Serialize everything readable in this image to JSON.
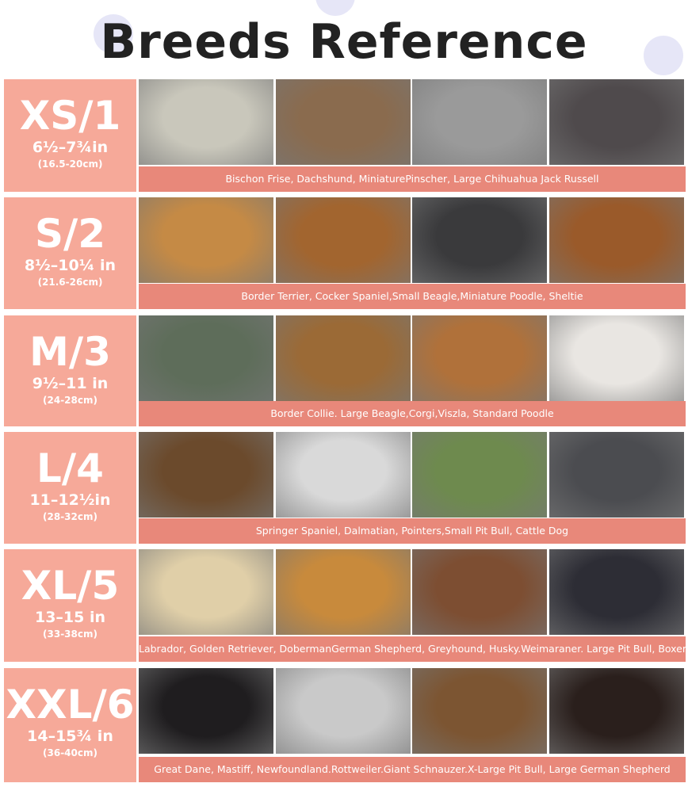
{
  "title": "Breeds Reference",
  "rows": [
    {
      "size": "XS/1",
      "range": "6½–7¾in",
      "cm": "(16.5-20cm)",
      "breeds": "Bischon Frise, Dachshund, MiniaturePinscher, Large Chihuahua Jack Russell"
    },
    {
      "size": "S/2",
      "range": "8½–10¼ in",
      "cm": "(21.6-26cm)",
      "breeds": "Border Terrier, Cocker Spaniel,Small Beagle,Miniature Poodle, Sheltie"
    },
    {
      "size": "M/3",
      "range": "9½–11 in",
      "cm": "(24-28cm)",
      "breeds": "Border Collie. Large Beagle,Corgi,Viszla, Standard Poodle"
    },
    {
      "size": "L/4",
      "range": "11–12½in",
      "cm": "(28-32cm)",
      "breeds": "Springer Spaniel, Dalmatian, Pointers,Small Pit Bull, Cattle Dog"
    },
    {
      "size": "XL/5",
      "range": "13–15 in",
      "cm": "(33-38cm)",
      "breeds": "Labrador, Golden Retriever, DobermanGerman Shepherd, Greyhound, Husky.Weimaraner. Large Pit Bull, Boxer"
    },
    {
      "size": "XXL/6",
      "range": "14–15¾ in",
      "cm": "(36-40cm)",
      "breeds": "Great Dane, Mastiff, Newfoundland.Rottweiler.Giant Schnauzer.X-Large Pit Bull, Large German Shepherd"
    }
  ]
}
